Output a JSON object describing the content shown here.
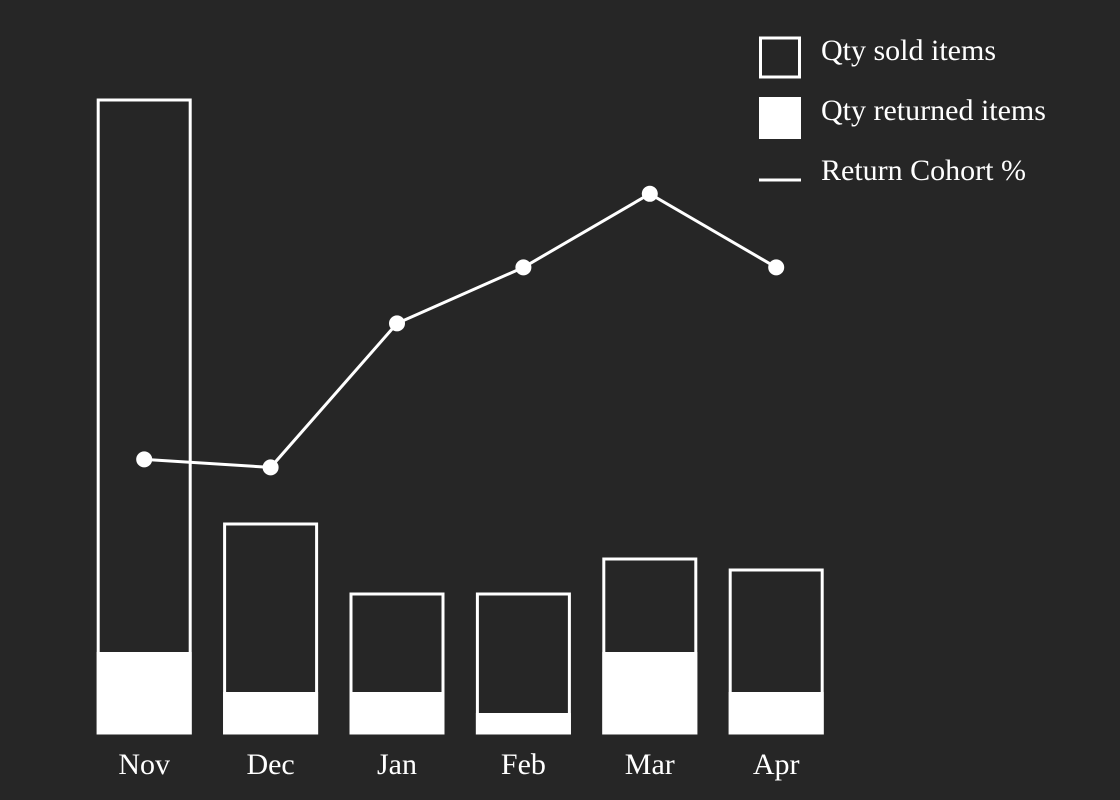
{
  "chart_data": {
    "type": "bar",
    "categories": [
      "Nov",
      "Dec",
      "Jan",
      "Feb",
      "Mar",
      "Apr"
    ],
    "series": [
      {
        "name": "Qty sold items",
        "color": "#ffffff",
        "kind": "outline",
        "values": [
          633,
          209,
          139,
          139,
          174,
          163
        ]
      },
      {
        "name": "Qty returned items",
        "color": "#ffffff",
        "kind": "filled",
        "values": [
          81,
          41,
          41,
          20,
          81,
          41
        ]
      },
      {
        "name": "Return Cohort %",
        "color": "#ffffff",
        "kind": "line",
        "axis": "y2",
        "values": [
          17.1,
          16.6,
          25.6,
          29.1,
          33.7,
          29.1
        ]
      }
    ],
    "ylim": [
      0,
      640
    ],
    "y2lim": [
      0,
      40
    ],
    "legend": "top-right",
    "background": "#262626"
  }
}
